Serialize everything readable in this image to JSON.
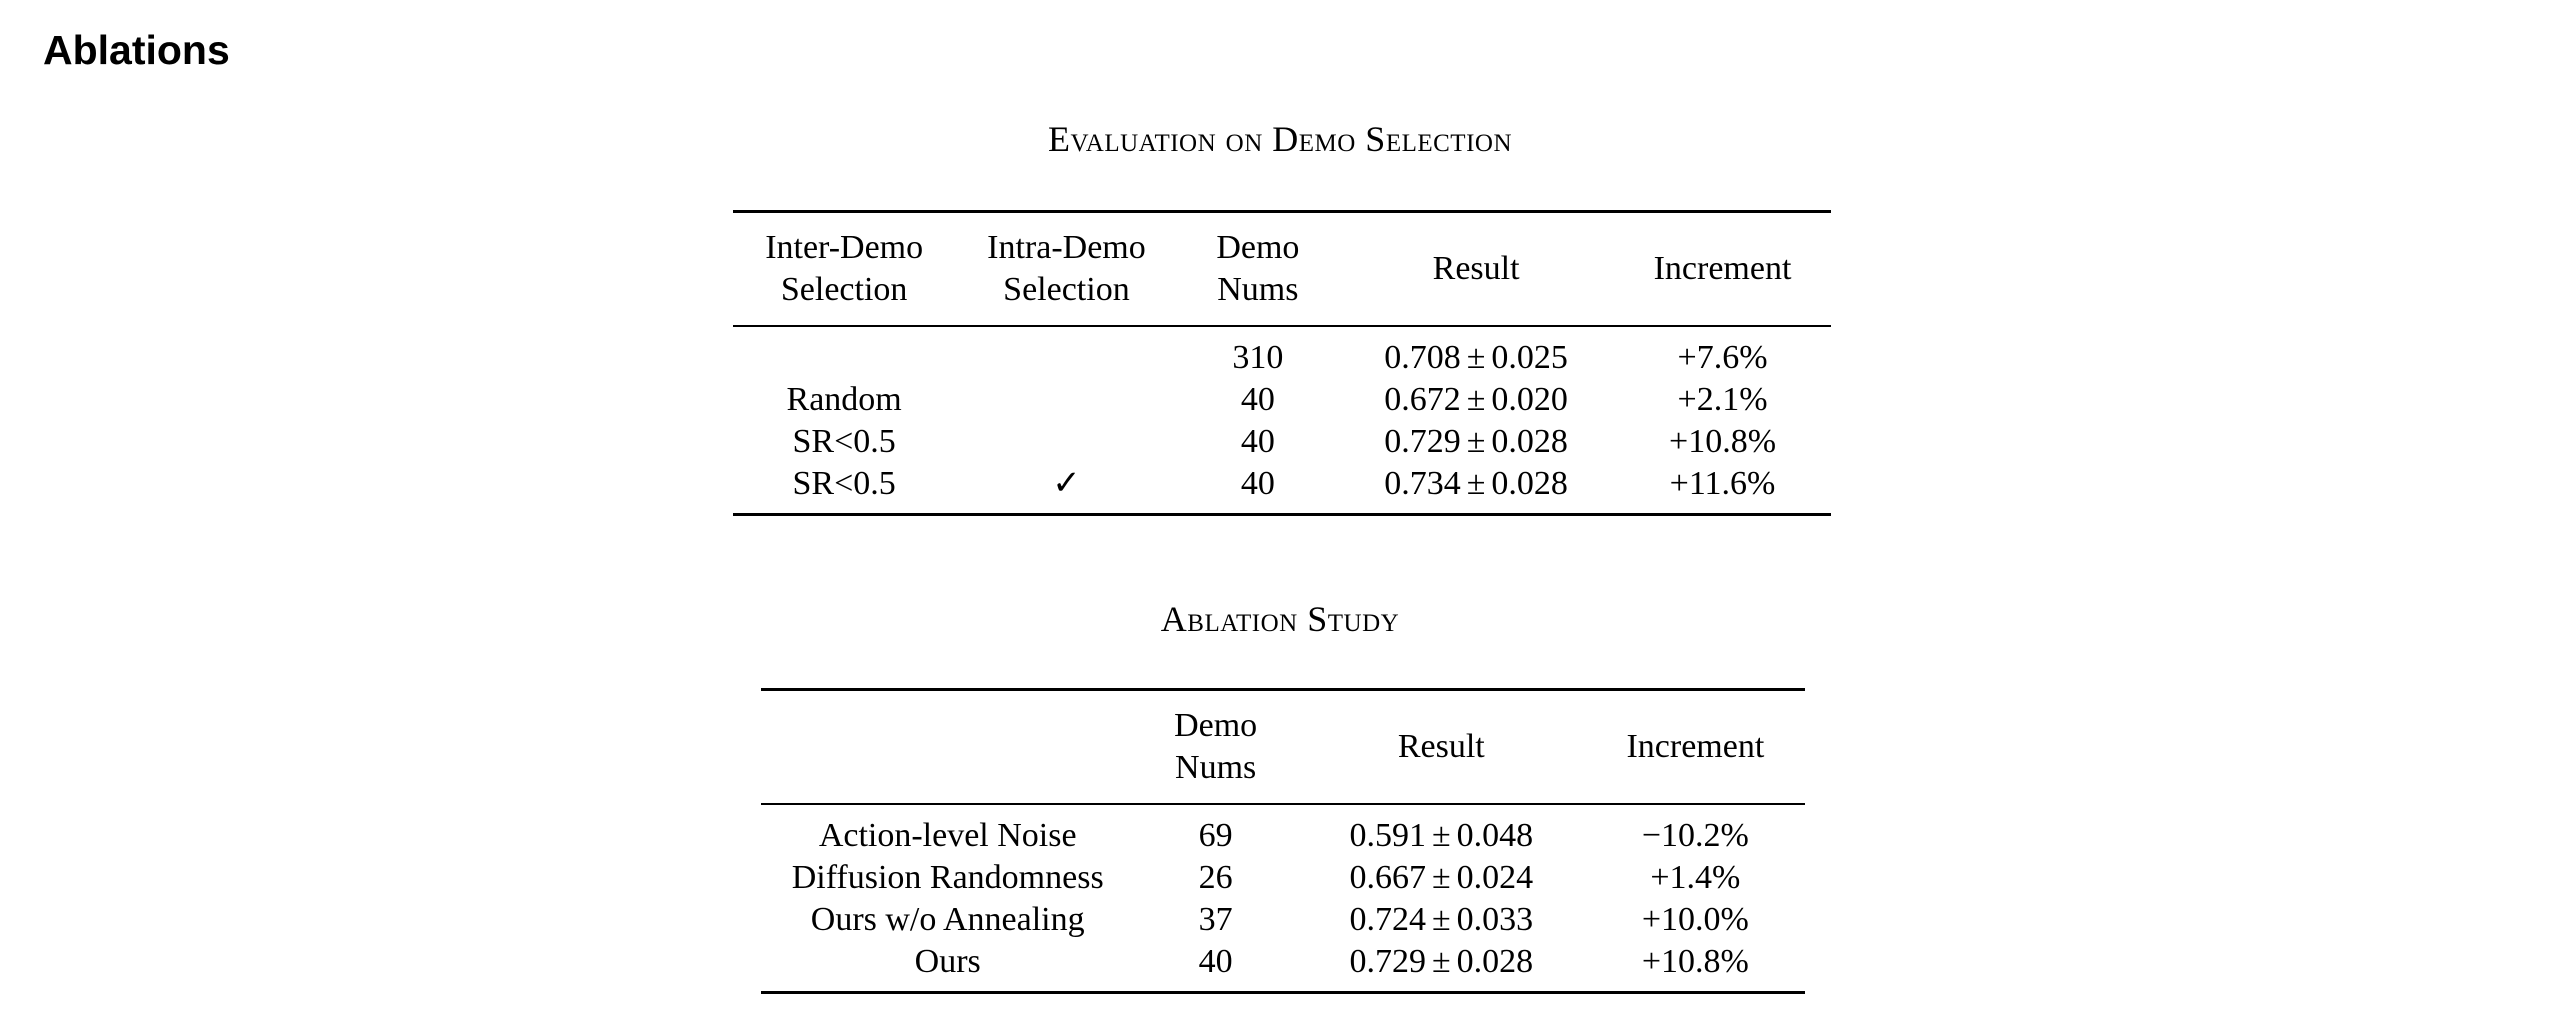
{
  "page": {
    "title": "Ablations"
  },
  "demo_selection_table": {
    "caption": "Evaluation on Demo Selection",
    "headers": {
      "inter_demo_line1": "Inter-Demo",
      "inter_demo_line2": "Selection",
      "intra_demo_line1": "Intra-Demo",
      "intra_demo_line2": "Selection",
      "demo_nums_line1": "Demo",
      "demo_nums_line2": "Nums",
      "result": "Result",
      "increment": "Increment"
    },
    "rows": [
      {
        "inter": "",
        "intra": "",
        "nums": "310",
        "result_mean": "0.708",
        "result_pm": "±",
        "result_std": "0.025",
        "increment": "+7.6%"
      },
      {
        "inter": "Random",
        "intra": "",
        "nums": "40",
        "result_mean": "0.672",
        "result_pm": "±",
        "result_std": "0.020",
        "increment": "+2.1%"
      },
      {
        "inter": "SR<0.5",
        "intra": "",
        "nums": "40",
        "result_mean": "0.729",
        "result_pm": "±",
        "result_std": "0.028",
        "increment": "+10.8%"
      },
      {
        "inter": "SR<0.5",
        "intra": "✓",
        "nums": "40",
        "result_mean": "0.734",
        "result_pm": "±",
        "result_std": "0.028",
        "increment": "+11.6%"
      }
    ]
  },
  "ablation_table": {
    "caption": "Ablation Study",
    "headers": {
      "method": "",
      "demo_nums_line1": "Demo",
      "demo_nums_line2": "Nums",
      "result": "Result",
      "increment": "Increment"
    },
    "rows": [
      {
        "method": "Action-level Noise",
        "nums": "69",
        "result_mean": "0.591",
        "result_pm": "±",
        "result_std": "0.048",
        "increment": "−10.2%"
      },
      {
        "method": "Diffusion Randomness",
        "nums": "26",
        "result_mean": "0.667",
        "result_pm": "±",
        "result_std": "0.024",
        "increment": "+1.4%"
      },
      {
        "method": "Ours w/o Annealing",
        "nums": "37",
        "result_mean": "0.724",
        "result_pm": "±",
        "result_std": "0.033",
        "increment": "+10.0%"
      },
      {
        "method": "Ours",
        "nums": "40",
        "result_mean": "0.729",
        "result_pm": "±",
        "result_std": "0.028",
        "increment": "+10.8%"
      }
    ]
  }
}
